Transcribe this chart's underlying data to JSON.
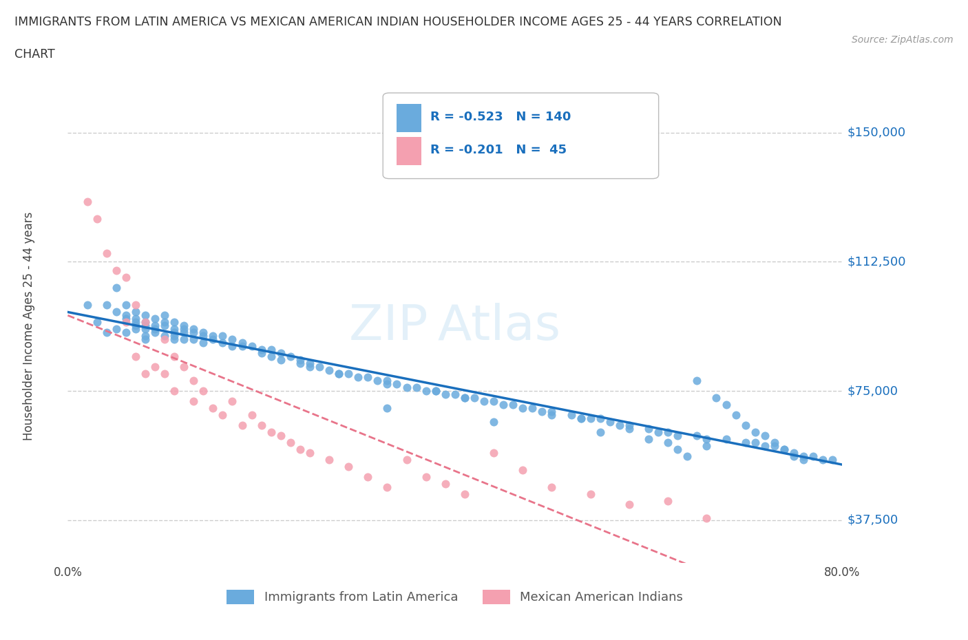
{
  "title_line1": "IMMIGRANTS FROM LATIN AMERICA VS MEXICAN AMERICAN INDIAN HOUSEHOLDER INCOME AGES 25 - 44 YEARS CORRELATION",
  "title_line2": "CHART",
  "source": "Source: ZipAtlas.com",
  "ylabel": "Householder Income Ages 25 - 44 years",
  "x_min": 0.0,
  "x_max": 0.8,
  "y_min": 25000,
  "y_max": 162500,
  "yticks": [
    37500,
    75000,
    112500,
    150000
  ],
  "ytick_labels": [
    "$37,500",
    "$75,000",
    "$112,500",
    "$150,000"
  ],
  "xticks": [
    0.0,
    0.1,
    0.2,
    0.3,
    0.4,
    0.5,
    0.6,
    0.7,
    0.8
  ],
  "xtick_labels": [
    "0.0%",
    "",
    "",
    "",
    "",
    "",
    "",
    "",
    "80.0%"
  ],
  "blue_R": -0.523,
  "blue_N": 140,
  "pink_R": -0.201,
  "pink_N": 45,
  "blue_color": "#6aabdd",
  "pink_color": "#f4a0b0",
  "blue_line_color": "#1a6fbd",
  "pink_line_color": "#e8748a",
  "grid_color": "#cccccc",
  "legend_label_blue": "Immigrants from Latin America",
  "legend_label_pink": "Mexican American Indians",
  "blue_scatter_x": [
    0.02,
    0.03,
    0.04,
    0.04,
    0.05,
    0.05,
    0.05,
    0.06,
    0.06,
    0.06,
    0.06,
    0.07,
    0.07,
    0.07,
    0.07,
    0.07,
    0.08,
    0.08,
    0.08,
    0.08,
    0.08,
    0.08,
    0.09,
    0.09,
    0.09,
    0.09,
    0.1,
    0.1,
    0.1,
    0.1,
    0.11,
    0.11,
    0.11,
    0.11,
    0.11,
    0.12,
    0.12,
    0.12,
    0.12,
    0.13,
    0.13,
    0.13,
    0.14,
    0.14,
    0.14,
    0.15,
    0.15,
    0.16,
    0.16,
    0.17,
    0.17,
    0.18,
    0.18,
    0.19,
    0.2,
    0.2,
    0.21,
    0.21,
    0.22,
    0.22,
    0.23,
    0.24,
    0.24,
    0.25,
    0.25,
    0.26,
    0.27,
    0.28,
    0.29,
    0.3,
    0.31,
    0.32,
    0.33,
    0.33,
    0.34,
    0.35,
    0.36,
    0.37,
    0.38,
    0.39,
    0.4,
    0.41,
    0.42,
    0.43,
    0.44,
    0.45,
    0.46,
    0.47,
    0.48,
    0.49,
    0.5,
    0.52,
    0.53,
    0.54,
    0.55,
    0.56,
    0.57,
    0.58,
    0.6,
    0.61,
    0.62,
    0.63,
    0.65,
    0.66,
    0.68,
    0.7,
    0.71,
    0.72,
    0.73,
    0.74,
    0.75,
    0.76,
    0.77,
    0.78,
    0.79,
    0.28,
    0.53,
    0.38,
    0.41,
    0.5,
    0.58,
    0.62,
    0.63,
    0.64,
    0.65,
    0.67,
    0.68,
    0.69,
    0.7,
    0.71,
    0.72,
    0.73,
    0.74,
    0.75,
    0.76,
    0.33,
    0.44,
    0.55,
    0.6,
    0.66
  ],
  "blue_scatter_y": [
    100000,
    95000,
    100000,
    92000,
    105000,
    98000,
    93000,
    100000,
    97000,
    96000,
    92000,
    95000,
    98000,
    96000,
    94000,
    93000,
    97000,
    95000,
    94000,
    93000,
    91000,
    90000,
    96000,
    94000,
    93000,
    92000,
    97000,
    95000,
    94000,
    91000,
    95000,
    93000,
    92000,
    91000,
    90000,
    94000,
    93000,
    92000,
    90000,
    93000,
    92000,
    90000,
    92000,
    91000,
    89000,
    91000,
    90000,
    91000,
    89000,
    90000,
    88000,
    89000,
    88000,
    88000,
    87000,
    86000,
    87000,
    85000,
    86000,
    84000,
    85000,
    84000,
    83000,
    83000,
    82000,
    82000,
    81000,
    80000,
    80000,
    79000,
    79000,
    78000,
    78000,
    77000,
    77000,
    76000,
    76000,
    75000,
    75000,
    74000,
    74000,
    73000,
    73000,
    72000,
    72000,
    71000,
    71000,
    70000,
    70000,
    69000,
    69000,
    68000,
    67000,
    67000,
    67000,
    66000,
    65000,
    65000,
    64000,
    63000,
    63000,
    62000,
    62000,
    61000,
    61000,
    60000,
    60000,
    59000,
    59000,
    58000,
    57000,
    56000,
    56000,
    55000,
    55000,
    80000,
    67000,
    75000,
    73000,
    68000,
    64000,
    60000,
    58000,
    56000,
    78000,
    73000,
    71000,
    68000,
    65000,
    63000,
    62000,
    60000,
    58000,
    56000,
    55000,
    70000,
    66000,
    63000,
    61000,
    59000
  ],
  "pink_scatter_x": [
    0.02,
    0.03,
    0.04,
    0.05,
    0.06,
    0.06,
    0.07,
    0.07,
    0.08,
    0.08,
    0.09,
    0.1,
    0.1,
    0.11,
    0.11,
    0.12,
    0.13,
    0.13,
    0.14,
    0.15,
    0.16,
    0.17,
    0.18,
    0.19,
    0.2,
    0.21,
    0.22,
    0.23,
    0.24,
    0.25,
    0.27,
    0.29,
    0.31,
    0.33,
    0.35,
    0.37,
    0.39,
    0.41,
    0.44,
    0.47,
    0.5,
    0.54,
    0.58,
    0.62,
    0.66
  ],
  "pink_scatter_y": [
    130000,
    125000,
    115000,
    110000,
    108000,
    95000,
    100000,
    85000,
    95000,
    80000,
    82000,
    90000,
    80000,
    85000,
    75000,
    82000,
    78000,
    72000,
    75000,
    70000,
    68000,
    72000,
    65000,
    68000,
    65000,
    63000,
    62000,
    60000,
    58000,
    57000,
    55000,
    53000,
    50000,
    47000,
    55000,
    50000,
    48000,
    45000,
    57000,
    52000,
    47000,
    45000,
    42000,
    43000,
    38000
  ]
}
